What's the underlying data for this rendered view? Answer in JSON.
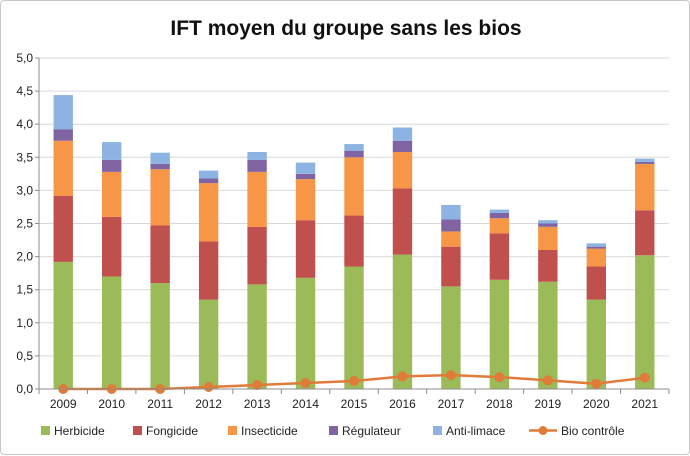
{
  "chart_data": {
    "type": "bar",
    "title": "IFT moyen du groupe sans les bios",
    "xlabel": "",
    "ylabel": "",
    "stacked": true,
    "categories": [
      "2009",
      "2010",
      "2011",
      "2012",
      "2013",
      "2014",
      "2015",
      "2016",
      "2017",
      "2018",
      "2019",
      "2020",
      "2021"
    ],
    "ylim": [
      0,
      5.0
    ],
    "yticks": [
      "0,0",
      "0,5",
      "1,0",
      "1,5",
      "2,0",
      "2,5",
      "3,0",
      "3,5",
      "4,0",
      "4,5",
      "5,0"
    ],
    "ytick_values": [
      0,
      0.5,
      1.0,
      1.5,
      2.0,
      2.5,
      3.0,
      3.5,
      4.0,
      4.5,
      5.0
    ],
    "grid": true,
    "legend_position": "bottom",
    "series": [
      {
        "name": "Herbicide",
        "kind": "bar",
        "color": "#9bbb59",
        "values": [
          1.92,
          1.7,
          1.6,
          1.35,
          1.58,
          1.68,
          1.85,
          2.03,
          1.55,
          1.65,
          1.62,
          1.35,
          2.02
        ]
      },
      {
        "name": "Fongicide",
        "kind": "bar",
        "color": "#c0504d",
        "values": [
          1.0,
          0.9,
          0.87,
          0.88,
          0.87,
          0.87,
          0.77,
          1.0,
          0.6,
          0.7,
          0.48,
          0.5,
          0.68
        ]
      },
      {
        "name": "Insecticide",
        "kind": "bar",
        "color": "#f79646",
        "values": [
          0.83,
          0.68,
          0.85,
          0.88,
          0.83,
          0.62,
          0.88,
          0.55,
          0.23,
          0.23,
          0.35,
          0.27,
          0.7
        ]
      },
      {
        "name": "Régulateur",
        "kind": "bar",
        "color": "#8064a2",
        "values": [
          0.17,
          0.18,
          0.08,
          0.07,
          0.18,
          0.08,
          0.1,
          0.17,
          0.18,
          0.08,
          0.05,
          0.03,
          0.03
        ]
      },
      {
        "name": "Anti-limace",
        "kind": "bar",
        "color": "#8db3e2",
        "values": [
          0.52,
          0.27,
          0.17,
          0.12,
          0.12,
          0.17,
          0.1,
          0.2,
          0.22,
          0.05,
          0.05,
          0.05,
          0.05
        ]
      },
      {
        "name": "Bio contrôle",
        "kind": "line",
        "color": "#e07b39",
        "values": [
          0.0,
          0.0,
          0.0,
          0.03,
          0.06,
          0.09,
          0.12,
          0.19,
          0.21,
          0.18,
          0.13,
          0.08,
          0.17
        ]
      }
    ]
  }
}
